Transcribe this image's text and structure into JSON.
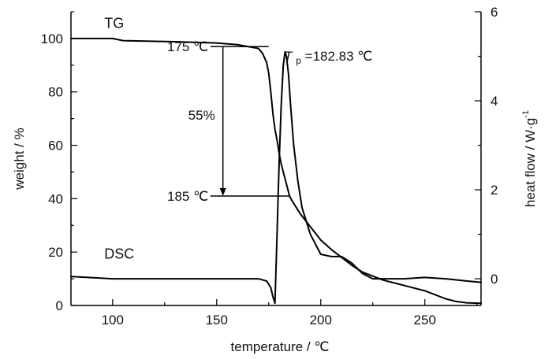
{
  "chart_data": {
    "type": "line",
    "xlabel": "temperature / ℃",
    "ylabel": "weight / %",
    "y2label": "heat flow / W·g",
    "y2label_sup": "-1",
    "xlim": [
      80,
      277
    ],
    "ylim": [
      0,
      110
    ],
    "y2lim": [
      -0.6,
      6
    ],
    "x_ticks": [
      100,
      150,
      200,
      250
    ],
    "y_ticks": [
      0,
      20,
      40,
      60,
      80,
      100
    ],
    "y2_ticks": [
      0,
      2,
      4,
      6
    ],
    "grid": false,
    "series": [
      {
        "name": "TG",
        "axis": "left",
        "x": [
          80,
          100,
          105,
          130,
          150,
          160,
          170,
          172,
          174,
          175,
          176,
          177,
          178,
          179,
          180,
          181,
          182,
          183,
          184,
          185,
          186,
          188,
          190,
          195,
          200,
          205,
          210,
          215,
          220,
          225,
          230,
          240,
          250,
          255,
          260,
          265,
          270,
          277
        ],
        "y": [
          100,
          100,
          99.2,
          98.8,
          98.3,
          97.7,
          96.3,
          94.5,
          91.0,
          87.0,
          80.0,
          72.0,
          66.0,
          62.0,
          57.0,
          53.0,
          50.0,
          47.0,
          44.0,
          41.0,
          39.5,
          37.0,
          34.5,
          29.5,
          24.5,
          21.0,
          18.0,
          15.0,
          12.5,
          11.0,
          9.5,
          7.5,
          5.5,
          4.0,
          2.5,
          1.5,
          1.0,
          0.8
        ]
      },
      {
        "name": "DSC",
        "axis": "right",
        "x": [
          80,
          100,
          150,
          170,
          174,
          176,
          177,
          178,
          179,
          180,
          181,
          182,
          182.83,
          183.5,
          184.5,
          185.5,
          187,
          189,
          191,
          195,
          200,
          205,
          210,
          215,
          220,
          225,
          230,
          240,
          250,
          260,
          270,
          277
        ],
        "y": [
          0.05,
          0.0,
          0.0,
          0.0,
          -0.05,
          -0.2,
          -0.4,
          -0.55,
          1.0,
          2.6,
          3.9,
          4.8,
          5.1,
          5.0,
          4.6,
          3.9,
          3.0,
          2.2,
          1.6,
          1.0,
          0.55,
          0.5,
          0.5,
          0.35,
          0.12,
          0.0,
          0.0,
          0.0,
          0.03,
          0.0,
          -0.05,
          -0.08
        ]
      }
    ],
    "labels": {
      "tg": "TG",
      "dsc": "DSC"
    },
    "annotations": {
      "temp_start": "175 ℃",
      "temp_end": "185 ℃",
      "mass_loss": "55%",
      "peak_symbol": "T",
      "peak_subscript": "p",
      "peak_value": "=182.83 ℃"
    },
    "annotation_values": {
      "temp_start_x": 175,
      "temp_start_y": 97,
      "temp_end_x": 185,
      "temp_end_y": 41,
      "peak_x": 182.83
    }
  }
}
